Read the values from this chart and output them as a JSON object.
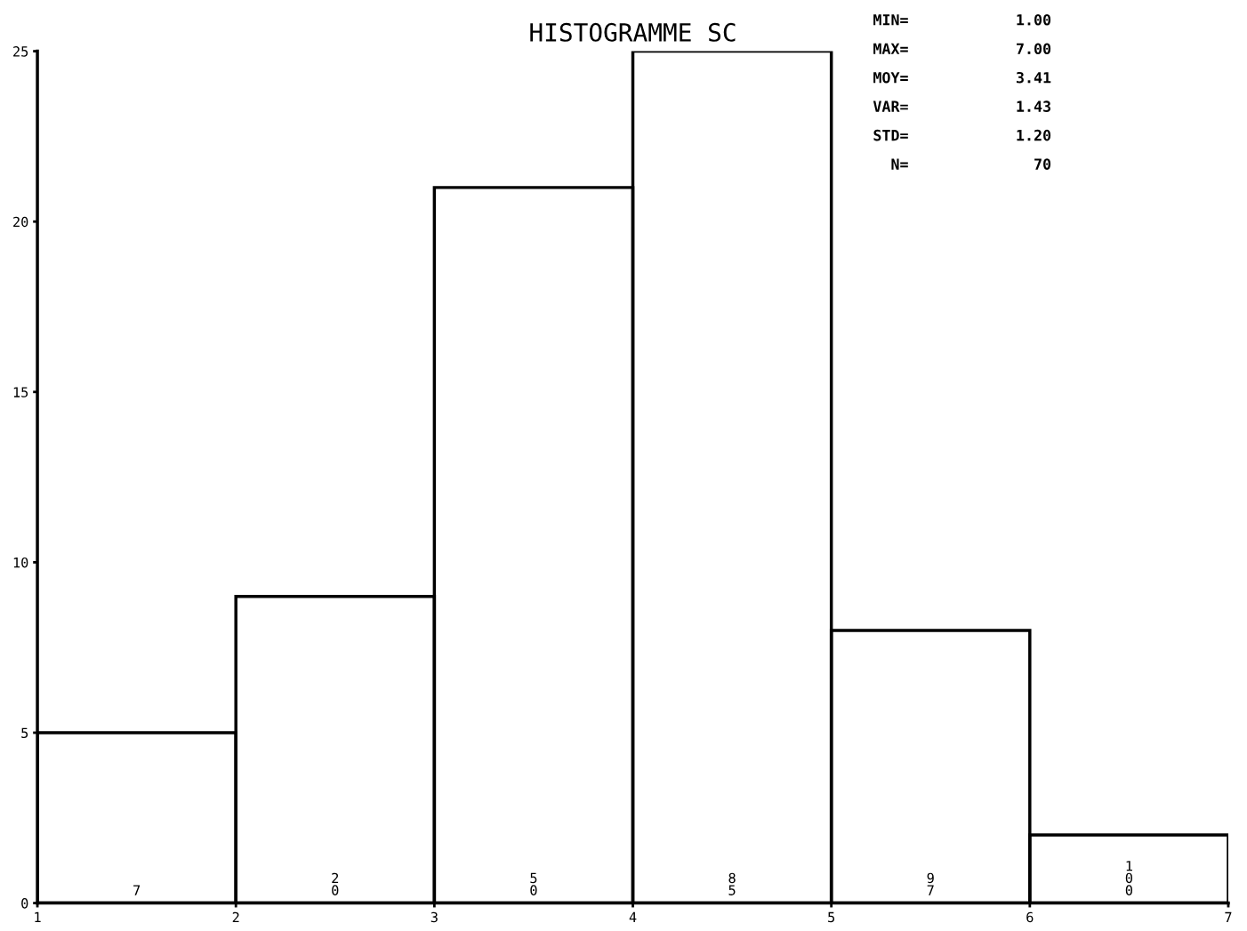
{
  "chart_data": {
    "type": "histogram",
    "title": "HISTOGRAMME SC",
    "bins": [
      1,
      2,
      3,
      4,
      5,
      6,
      7
    ],
    "values": [
      5,
      9,
      21,
      25,
      8,
      2
    ],
    "color": "#000000",
    "xlim": [
      1,
      7
    ],
    "xticks": [
      1,
      2,
      3,
      4,
      5,
      6,
      7
    ],
    "ylim": [
      0,
      25
    ],
    "yticks": [
      0,
      5,
      10,
      15,
      20,
      25
    ],
    "grid": false,
    "legend": false,
    "annotations": [
      {
        "text": "7",
        "x": 1.5,
        "y": 0
      },
      {
        "text": "20",
        "x": 2.5,
        "y": 0
      },
      {
        "text": "50",
        "x": 3.5,
        "y": 0
      },
      {
        "text": "85",
        "x": 4.5,
        "y": 0
      },
      {
        "text": "97",
        "x": 5.5,
        "y": 0
      },
      {
        "text": "100",
        "x": 6.5,
        "y": 0
      },
      "MIN=            1.00",
      "MAX=            7.00",
      "MOY=            3.41",
      "VAR=            1.43",
      "STD=            1.20",
      "  N=              70"
    ]
  }
}
